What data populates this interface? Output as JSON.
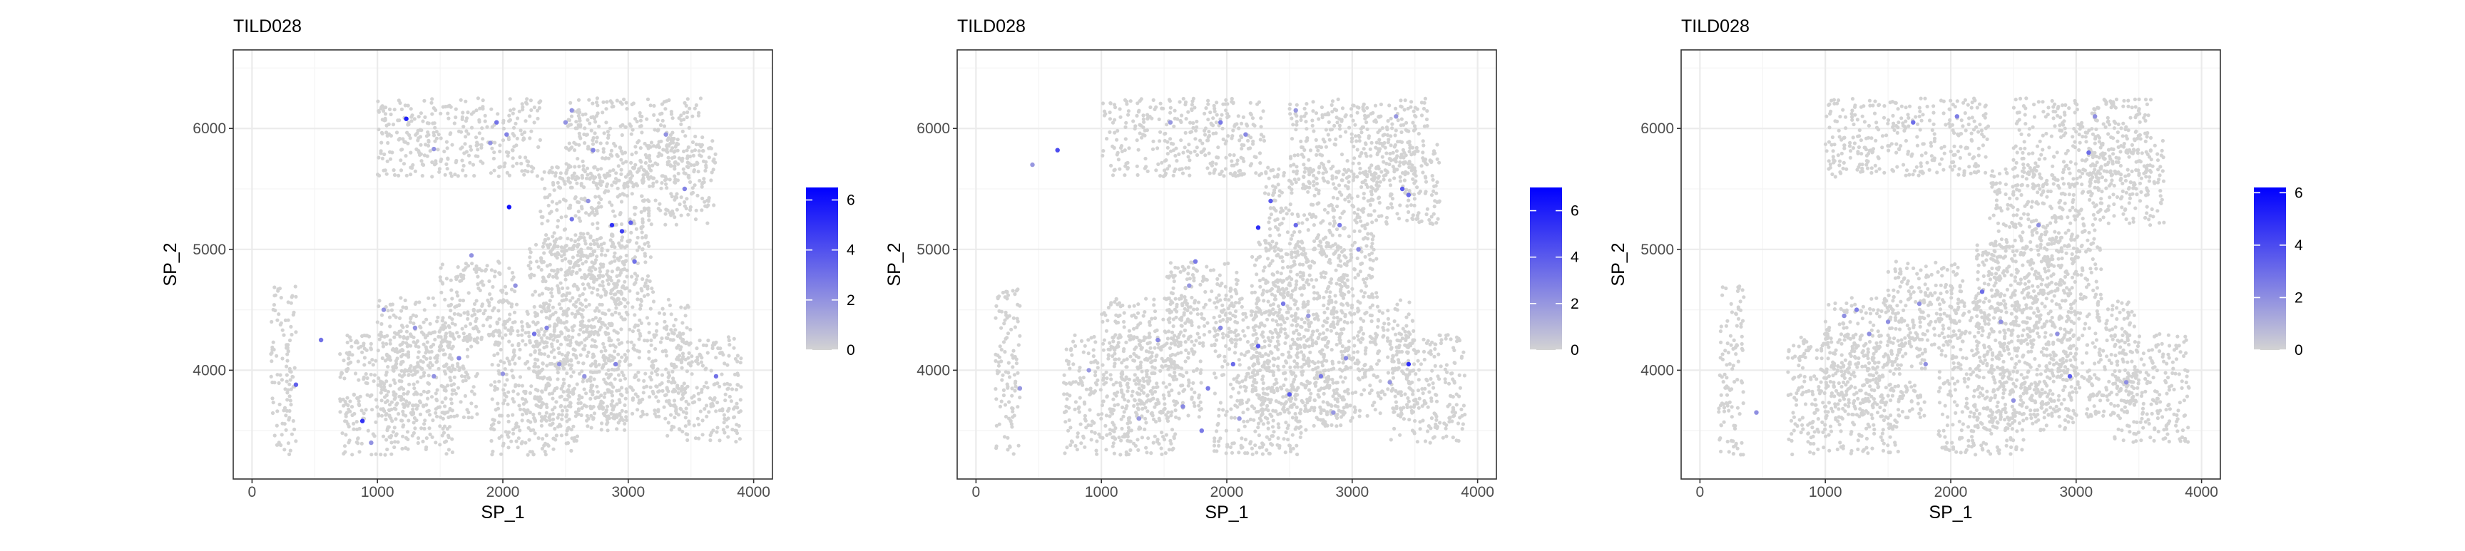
{
  "colors": {
    "low": "#d3d3d3",
    "high": "#0000ff",
    "panel_border": "#333333",
    "grid_major": "#ebebeb",
    "grid_minor": "#f5f5f5",
    "text": "#000000",
    "tick_text": "#4d4d4d"
  },
  "chart_data": [
    {
      "type": "scatter",
      "title": "TILD028",
      "xlabel": "SP_1",
      "ylabel": "SP_2",
      "xlim": [
        -150,
        4150
      ],
      "ylim": [
        3100,
        6650
      ],
      "xticks": [
        0,
        1000,
        2000,
        3000,
        4000
      ],
      "xtick_labels": [
        "0",
        "1000",
        "2000",
        "3000",
        "4000"
      ],
      "yticks": [
        4000,
        5000,
        6000
      ],
      "ytick_labels": [
        "4000",
        "5000",
        "6000"
      ],
      "grid": true,
      "legend": {
        "placement": "right",
        "min": 0,
        "max": 6.5,
        "ticks": [
          0,
          2,
          4,
          6
        ],
        "tick_labels": [
          "0",
          "2",
          "4",
          "6"
        ]
      },
      "background_regions": [
        [
          150,
          3300,
          350,
          4700
        ],
        [
          700,
          3300,
          1600,
          4300
        ],
        [
          1000,
          3600,
          1800,
          4600
        ],
        [
          1500,
          4200,
          2100,
          4900
        ],
        [
          1900,
          3300,
          2600,
          4600
        ],
        [
          2200,
          3500,
          3000,
          5100
        ],
        [
          2600,
          3600,
          3500,
          4600
        ],
        [
          2300,
          4600,
          3200,
          5700
        ],
        [
          1000,
          5600,
          2300,
          6250
        ],
        [
          2500,
          5500,
          3600,
          6250
        ],
        [
          3100,
          5200,
          3700,
          5900
        ],
        [
          3300,
          3400,
          3900,
          4300
        ]
      ],
      "expressing_points": [
        [
          1230,
          6080,
          5.5
        ],
        [
          1950,
          6050,
          3
        ],
        [
          2030,
          5950,
          2.5
        ],
        [
          1900,
          5880,
          2
        ],
        [
          2050,
          5350,
          6
        ],
        [
          2550,
          6150,
          2
        ],
        [
          2720,
          5820,
          2.5
        ],
        [
          2870,
          5200,
          5
        ],
        [
          2950,
          5150,
          4.5
        ],
        [
          3020,
          5220,
          3.5
        ],
        [
          2550,
          5250,
          3
        ],
        [
          2680,
          5400,
          2
        ],
        [
          3050,
          4900,
          3
        ],
        [
          3450,
          5500,
          2.5
        ],
        [
          3300,
          5950,
          2
        ],
        [
          1450,
          5830,
          2
        ],
        [
          350,
          3880,
          3.5
        ],
        [
          550,
          4250,
          3
        ],
        [
          880,
          3580,
          5
        ],
        [
          950,
          3400,
          2
        ],
        [
          1050,
          4500,
          2
        ],
        [
          1450,
          3950,
          2
        ],
        [
          1650,
          4100,
          2.5
        ],
        [
          2000,
          3970,
          2
        ],
        [
          2250,
          4300,
          3
        ],
        [
          2450,
          4050,
          2
        ],
        [
          2650,
          3950,
          2
        ],
        [
          2900,
          4050,
          2.5
        ],
        [
          3700,
          3950,
          3
        ],
        [
          1300,
          4350,
          2
        ],
        [
          2350,
          4350,
          2.5
        ],
        [
          2100,
          4700,
          2
        ],
        [
          2500,
          6050,
          2
        ],
        [
          1750,
          4950,
          2
        ]
      ]
    },
    {
      "type": "scatter",
      "title": "TILD028",
      "xlabel": "SP_1",
      "ylabel": "SP_2",
      "xlim": [
        -150,
        4150
      ],
      "ylim": [
        3100,
        6650
      ],
      "xticks": [
        0,
        1000,
        2000,
        3000,
        4000
      ],
      "xtick_labels": [
        "0",
        "1000",
        "2000",
        "3000",
        "4000"
      ],
      "yticks": [
        4000,
        5000,
        6000
      ],
      "ytick_labels": [
        "4000",
        "5000",
        "6000"
      ],
      "grid": true,
      "legend": {
        "placement": "right",
        "min": 0,
        "max": 7,
        "ticks": [
          0,
          2,
          4,
          6
        ],
        "tick_labels": [
          "0",
          "2",
          "4",
          "6"
        ]
      },
      "background_regions": [
        [
          150,
          3300,
          350,
          4700
        ],
        [
          700,
          3300,
          1600,
          4300
        ],
        [
          1000,
          3600,
          1800,
          4600
        ],
        [
          1500,
          4200,
          2100,
          4900
        ],
        [
          1900,
          3300,
          2600,
          4600
        ],
        [
          2200,
          3500,
          3000,
          5100
        ],
        [
          2600,
          3600,
          3500,
          4600
        ],
        [
          2300,
          4600,
          3200,
          5700
        ],
        [
          1000,
          5600,
          2300,
          6250
        ],
        [
          2500,
          5500,
          3600,
          6250
        ],
        [
          3100,
          5200,
          3700,
          5900
        ],
        [
          3300,
          3400,
          3900,
          4300
        ]
      ],
      "expressing_points": [
        [
          650,
          5820,
          4.5
        ],
        [
          450,
          5700,
          2
        ],
        [
          1550,
          6050,
          2
        ],
        [
          1950,
          6050,
          3
        ],
        [
          2150,
          5950,
          2.5
        ],
        [
          2550,
          6150,
          2
        ],
        [
          2350,
          5400,
          4
        ],
        [
          2250,
          5180,
          5.5
        ],
        [
          2550,
          5200,
          3.5
        ],
        [
          2900,
          5200,
          3
        ],
        [
          3400,
          5500,
          4
        ],
        [
          3450,
          5450,
          3.5
        ],
        [
          3050,
          5000,
          2.5
        ],
        [
          3350,
          6100,
          2
        ],
        [
          1750,
          4900,
          3
        ],
        [
          1700,
          4700,
          2
        ],
        [
          2450,
          4550,
          3
        ],
        [
          2250,
          4200,
          4
        ],
        [
          2050,
          4050,
          3.5
        ],
        [
          1850,
          3850,
          3
        ],
        [
          1650,
          3700,
          2.5
        ],
        [
          1800,
          3500,
          3
        ],
        [
          1300,
          3600,
          2
        ],
        [
          900,
          4000,
          2
        ],
        [
          1450,
          4250,
          2.5
        ],
        [
          2750,
          3950,
          3
        ],
        [
          2950,
          4100,
          2.5
        ],
        [
          2500,
          3800,
          4
        ],
        [
          3300,
          3900,
          2
        ],
        [
          3450,
          4050,
          5.5
        ],
        [
          2100,
          3600,
          2
        ],
        [
          2850,
          3650,
          2
        ],
        [
          350,
          3850,
          2
        ],
        [
          1950,
          4350,
          2.5
        ],
        [
          2650,
          4450,
          2
        ]
      ]
    },
    {
      "type": "scatter",
      "title": "TILD028",
      "xlabel": "SP_1",
      "ylabel": "SP_2",
      "xlim": [
        -150,
        4150
      ],
      "ylim": [
        3100,
        6650
      ],
      "xticks": [
        0,
        1000,
        2000,
        3000,
        4000
      ],
      "xtick_labels": [
        "0",
        "1000",
        "2000",
        "3000",
        "4000"
      ],
      "yticks": [
        4000,
        5000,
        6000
      ],
      "ytick_labels": [
        "4000",
        "5000",
        "6000"
      ],
      "grid": true,
      "legend": {
        "placement": "right",
        "min": 0,
        "max": 6.2,
        "ticks": [
          0,
          2,
          4,
          6
        ],
        "tick_labels": [
          "0",
          "2",
          "4",
          "6"
        ]
      },
      "background_regions": [
        [
          150,
          3300,
          350,
          4700
        ],
        [
          700,
          3300,
          1600,
          4300
        ],
        [
          1000,
          3600,
          1800,
          4600
        ],
        [
          1500,
          4200,
          2100,
          4900
        ],
        [
          1900,
          3300,
          2600,
          4600
        ],
        [
          2200,
          3500,
          3000,
          5100
        ],
        [
          2600,
          3600,
          3500,
          4600
        ],
        [
          2300,
          4600,
          3200,
          5700
        ],
        [
          1000,
          5600,
          2300,
          6250
        ],
        [
          2500,
          5500,
          3600,
          6250
        ],
        [
          3100,
          5200,
          3700,
          5900
        ],
        [
          3300,
          3400,
          3900,
          4300
        ]
      ],
      "expressing_points": [
        [
          1700,
          6050,
          3
        ],
        [
          2050,
          6100,
          2.5
        ],
        [
          3150,
          6100,
          2
        ],
        [
          3100,
          5800,
          3
        ],
        [
          1150,
          4450,
          2
        ],
        [
          1250,
          4500,
          2.5
        ],
        [
          1500,
          4400,
          2
        ],
        [
          1750,
          4550,
          2
        ],
        [
          2250,
          4650,
          3
        ],
        [
          2400,
          4400,
          2
        ],
        [
          2950,
          3950,
          3.5
        ],
        [
          2500,
          3750,
          2
        ],
        [
          1800,
          4050,
          2
        ],
        [
          450,
          3650,
          2
        ],
        [
          3400,
          3900,
          2
        ],
        [
          2700,
          5200,
          2
        ],
        [
          1350,
          4300,
          2
        ],
        [
          2850,
          4300,
          2
        ]
      ]
    }
  ]
}
